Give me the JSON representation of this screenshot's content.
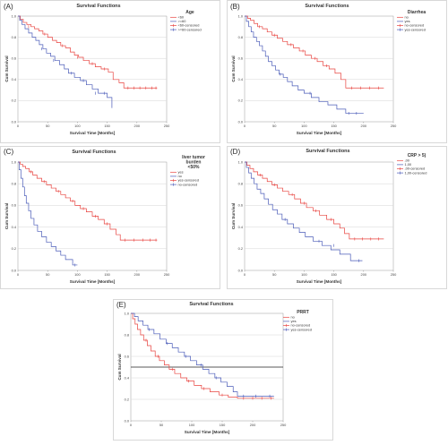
{
  "chart_data": [
    {
      "panel": "(A)",
      "type": "line",
      "title": "Survival Functions",
      "xlabel": "Survival Time [Months]",
      "ylabel": "Cum Survival",
      "xlim": [
        0,
        250
      ],
      "ylim": [
        0,
        1.0
      ],
      "xticks": [
        "0",
        "50",
        "100",
        "150",
        "200",
        "250"
      ],
      "yticks": [
        "0.0",
        "0.2",
        "0.4",
        "0.6",
        "0.8",
        "1.0"
      ],
      "grid": "horizontal",
      "legend": {
        "title": "Age",
        "entries": [
          {
            "label": "<60",
            "color": "#e8433f",
            "style": "line"
          },
          {
            "label": ">=60",
            "color": "#4a5bb8",
            "style": "line"
          },
          {
            "label": "<60-censored",
            "color": "#e8433f",
            "style": "censor"
          },
          {
            "label": ">=60-censored",
            "color": "#4a5bb8",
            "style": "censor"
          }
        ]
      },
      "series": [
        {
          "color": "#e8433f",
          "x": [
            0,
            4,
            9,
            15,
            22,
            28,
            35,
            42,
            50,
            58,
            65,
            72,
            80,
            88,
            95,
            102,
            110,
            120,
            130,
            140,
            152,
            160,
            170,
            178,
            234
          ],
          "y": [
            1.0,
            0.97,
            0.94,
            0.92,
            0.9,
            0.88,
            0.86,
            0.83,
            0.8,
            0.77,
            0.75,
            0.72,
            0.7,
            0.66,
            0.63,
            0.61,
            0.58,
            0.55,
            0.52,
            0.5,
            0.47,
            0.4,
            0.37,
            0.32,
            0.32
          ],
          "censored": [
            [
              18,
              0.9
            ],
            [
              45,
              0.83
            ],
            [
              75,
              0.72
            ],
            [
              100,
              0.61
            ],
            [
              125,
              0.55
            ],
            [
              145,
              0.5
            ],
            [
              185,
              0.32
            ],
            [
              195,
              0.32
            ],
            [
              205,
              0.32
            ],
            [
              215,
              0.32
            ],
            [
              225,
              0.32
            ],
            [
              232,
              0.32
            ]
          ]
        },
        {
          "color": "#4a5bb8",
          "x": [
            0,
            3,
            7,
            12,
            18,
            24,
            30,
            36,
            42,
            48,
            55,
            62,
            70,
            78,
            85,
            95,
            105,
            115,
            125,
            135,
            150,
            158
          ],
          "y": [
            1.0,
            0.96,
            0.92,
            0.88,
            0.84,
            0.8,
            0.77,
            0.73,
            0.69,
            0.65,
            0.62,
            0.58,
            0.54,
            0.5,
            0.46,
            0.42,
            0.39,
            0.35,
            0.31,
            0.27,
            0.23,
            0.13
          ],
          "censored": [
            [
              40,
              0.69
            ],
            [
              60,
              0.58
            ],
            [
              90,
              0.46
            ],
            [
              110,
              0.39
            ],
            [
              130,
              0.27
            ],
            [
              145,
              0.27
            ]
          ]
        }
      ]
    },
    {
      "panel": "(B)",
      "type": "line",
      "title": "Survival Functions",
      "xlabel": "Survival Time [Months]",
      "ylabel": "Cum Survival",
      "xlim": [
        0,
        250
      ],
      "ylim": [
        0,
        1.0
      ],
      "xticks": [
        "0",
        "50",
        "100",
        "150",
        "200",
        "250"
      ],
      "yticks": [
        "0.0",
        "0.2",
        "0.4",
        "0.6",
        "0.8",
        "1.0"
      ],
      "grid": "horizontal",
      "legend": {
        "title": "Diarrhea",
        "entries": [
          {
            "label": "no",
            "color": "#e8433f",
            "style": "line"
          },
          {
            "label": "yes",
            "color": "#4a5bb8",
            "style": "line"
          },
          {
            "label": "no-censored",
            "color": "#e8433f",
            "style": "censor"
          },
          {
            "label": "yes-censored",
            "color": "#4a5bb8",
            "style": "censor"
          }
        ]
      },
      "series": [
        {
          "color": "#e8433f",
          "x": [
            0,
            5,
            10,
            16,
            22,
            30,
            38,
            46,
            55,
            64,
            72,
            82,
            92,
            102,
            112,
            122,
            132,
            142,
            152,
            162,
            170,
            234
          ],
          "y": [
            1.0,
            0.98,
            0.96,
            0.93,
            0.9,
            0.88,
            0.85,
            0.82,
            0.79,
            0.76,
            0.73,
            0.7,
            0.67,
            0.63,
            0.6,
            0.57,
            0.53,
            0.5,
            0.46,
            0.4,
            0.32,
            0.32
          ],
          "censored": [
            [
              25,
              0.9
            ],
            [
              50,
              0.82
            ],
            [
              78,
              0.73
            ],
            [
              98,
              0.67
            ],
            [
              118,
              0.6
            ],
            [
              138,
              0.53
            ],
            [
              180,
              0.32
            ],
            [
              195,
              0.32
            ],
            [
              210,
              0.32
            ],
            [
              225,
              0.32
            ]
          ]
        },
        {
          "color": "#4a5bb8",
          "x": [
            0,
            3,
            7,
            11,
            15,
            20,
            25,
            30,
            35,
            40,
            46,
            52,
            58,
            65,
            72,
            80,
            90,
            100,
            112,
            125,
            140,
            155,
            170,
            200
          ],
          "y": [
            1.0,
            0.95,
            0.9,
            0.85,
            0.8,
            0.76,
            0.72,
            0.67,
            0.62,
            0.57,
            0.53,
            0.49,
            0.45,
            0.42,
            0.38,
            0.34,
            0.3,
            0.27,
            0.23,
            0.19,
            0.16,
            0.12,
            0.08,
            0.08
          ],
          "censored": [
            [
              60,
              0.45
            ],
            [
              110,
              0.27
            ],
            [
              175,
              0.08
            ],
            [
              188,
              0.08
            ]
          ]
        }
      ]
    },
    {
      "panel": "(C)",
      "type": "line",
      "title": "Survival Functions",
      "xlabel": "Survival Time [Months]",
      "ylabel": "Cum Survival",
      "xlim": [
        0,
        250
      ],
      "ylim": [
        0,
        1.0
      ],
      "xticks": [
        "0",
        "50",
        "100",
        "150",
        "200",
        "250"
      ],
      "yticks": [
        "0.0",
        "0.2",
        "0.4",
        "0.6",
        "0.8",
        "1.0"
      ],
      "grid": "horizontal",
      "legend": {
        "title_lines": [
          "liver tumor",
          "burden",
          "<50%"
        ],
        "entries": [
          {
            "label": "yes",
            "color": "#e8433f",
            "style": "line"
          },
          {
            "label": "no",
            "color": "#4a5bb8",
            "style": "line"
          },
          {
            "label": "yes-censored",
            "color": "#e8433f",
            "style": "censor"
          },
          {
            "label": "no-censored",
            "color": "#4a5bb8",
            "style": "censor"
          }
        ]
      },
      "series": [
        {
          "color": "#e8433f",
          "x": [
            0,
            4,
            8,
            13,
            19,
            25,
            32,
            40,
            48,
            56,
            64,
            72,
            80,
            88,
            96,
            105,
            115,
            125,
            135,
            145,
            155,
            165,
            172,
            234
          ],
          "y": [
            1.0,
            0.98,
            0.96,
            0.94,
            0.91,
            0.88,
            0.85,
            0.82,
            0.79,
            0.76,
            0.73,
            0.7,
            0.67,
            0.64,
            0.6,
            0.57,
            0.54,
            0.5,
            0.47,
            0.43,
            0.38,
            0.33,
            0.28,
            0.28
          ],
          "censored": [
            [
              22,
              0.91
            ],
            [
              44,
              0.82
            ],
            [
              68,
              0.73
            ],
            [
              92,
              0.64
            ],
            [
              110,
              0.57
            ],
            [
              130,
              0.5
            ],
            [
              150,
              0.43
            ],
            [
              180,
              0.28
            ],
            [
              195,
              0.28
            ],
            [
              210,
              0.28
            ],
            [
              222,
              0.28
            ],
            [
              232,
              0.28
            ]
          ]
        },
        {
          "color": "#4a5bb8",
          "x": [
            0,
            2,
            5,
            8,
            11,
            14,
            18,
            22,
            27,
            33,
            40,
            48,
            56,
            64,
            72,
            80,
            92,
            100
          ],
          "y": [
            1.0,
            0.93,
            0.85,
            0.77,
            0.69,
            0.62,
            0.55,
            0.48,
            0.42,
            0.36,
            0.31,
            0.26,
            0.22,
            0.18,
            0.14,
            0.1,
            0.05,
            0.05
          ],
          "censored": [
            [
              96,
              0.05
            ]
          ]
        }
      ]
    },
    {
      "panel": "(D)",
      "type": "line",
      "title": "Survival Functions",
      "xlabel": "Survival Time [Months]",
      "ylabel": "Cum Survival",
      "xlim": [
        0,
        250
      ],
      "ylim": [
        0,
        1.0
      ],
      "xticks": [
        "0",
        "50",
        "100",
        "150",
        "200",
        "250"
      ],
      "yticks": [
        "0.0",
        "0.2",
        "0.4",
        "0.6",
        "0.8",
        "1.0"
      ],
      "grid": "horizontal",
      "legend": {
        "title": "CRP > 5)",
        "entries": [
          {
            "label": ",00",
            "color": "#e8433f",
            "style": "line"
          },
          {
            "label": "1,00",
            "color": "#4a5bb8",
            "style": "line"
          },
          {
            "label": ",00-censored",
            "color": "#e8433f",
            "style": "censor"
          },
          {
            "label": "1,00-censored",
            "color": "#4a5bb8",
            "style": "censor"
          }
        ]
      },
      "series": [
        {
          "color": "#e8433f",
          "x": [
            0,
            4,
            9,
            15,
            22,
            30,
            38,
            46,
            55,
            64,
            74,
            84,
            94,
            104,
            115,
            126,
            138,
            150,
            160,
            168,
            176,
            234
          ],
          "y": [
            1.0,
            0.97,
            0.94,
            0.91,
            0.88,
            0.85,
            0.82,
            0.79,
            0.76,
            0.73,
            0.7,
            0.66,
            0.62,
            0.58,
            0.55,
            0.51,
            0.47,
            0.43,
            0.39,
            0.34,
            0.29,
            0.29
          ],
          "censored": [
            [
              26,
              0.88
            ],
            [
              50,
              0.79
            ],
            [
              80,
              0.7
            ],
            [
              100,
              0.62
            ],
            [
              120,
              0.55
            ],
            [
              145,
              0.47
            ],
            [
              185,
              0.29
            ],
            [
              198,
              0.29
            ],
            [
              212,
              0.29
            ],
            [
              225,
              0.29
            ]
          ]
        },
        {
          "color": "#4a5bb8",
          "x": [
            0,
            3,
            7,
            11,
            16,
            21,
            27,
            33,
            40,
            47,
            55,
            63,
            72,
            82,
            92,
            102,
            115,
            130,
            145,
            160,
            178,
            198
          ],
          "y": [
            1.0,
            0.95,
            0.9,
            0.85,
            0.8,
            0.75,
            0.71,
            0.66,
            0.61,
            0.56,
            0.52,
            0.47,
            0.43,
            0.39,
            0.35,
            0.31,
            0.27,
            0.23,
            0.19,
            0.15,
            0.09,
            0.09
          ],
          "censored": [
            [
              68,
              0.47
            ],
            [
              125,
              0.27
            ],
            [
              150,
              0.23
            ],
            [
              192,
              0.09
            ]
          ]
        }
      ]
    },
    {
      "panel": "(E)",
      "type": "line",
      "title": "Survival Functions",
      "xlabel": "Survival Time [Months]",
      "ylabel": "Cum Survival",
      "xlim": [
        0,
        250
      ],
      "ylim": [
        0,
        1.0
      ],
      "xticks": [
        "0",
        "50",
        "100",
        "150",
        "200",
        "250"
      ],
      "yticks": [
        "0.0",
        "0.2",
        "0.4",
        "0.6",
        "0.8",
        "1.0"
      ],
      "grid": "horizontal",
      "reference_line": 0.5,
      "legend": {
        "title": "PRRT",
        "entries": [
          {
            "label": "no",
            "color": "#e8433f",
            "style": "line"
          },
          {
            "label": "yes",
            "color": "#4a5bb8",
            "style": "line"
          },
          {
            "label": "no-censored",
            "color": "#e8433f",
            "style": "censor"
          },
          {
            "label": "yes-censored",
            "color": "#4a5bb8",
            "style": "censor"
          }
        ]
      },
      "series": [
        {
          "color": "#e8433f",
          "x": [
            0,
            3,
            7,
            11,
            16,
            21,
            27,
            33,
            40,
            47,
            55,
            63,
            72,
            82,
            92,
            104,
            116,
            130,
            145,
            160,
            175,
            235
          ],
          "y": [
            1.0,
            0.95,
            0.9,
            0.85,
            0.8,
            0.75,
            0.7,
            0.65,
            0.6,
            0.56,
            0.52,
            0.48,
            0.44,
            0.4,
            0.37,
            0.33,
            0.3,
            0.27,
            0.24,
            0.22,
            0.21,
            0.21
          ],
          "censored": [
            [
              25,
              0.75
            ],
            [
              45,
              0.6
            ],
            [
              68,
              0.48
            ],
            [
              95,
              0.37
            ],
            [
              120,
              0.3
            ],
            [
              150,
              0.24
            ],
            [
              185,
              0.21
            ],
            [
              200,
              0.21
            ],
            [
              215,
              0.21
            ],
            [
              230,
              0.21
            ]
          ]
        },
        {
          "color": "#4a5bb8",
          "x": [
            0,
            6,
            12,
            20,
            28,
            38,
            48,
            58,
            68,
            78,
            88,
            98,
            108,
            118,
            128,
            138,
            148,
            158,
            168,
            175,
            235
          ],
          "y": [
            1.0,
            0.97,
            0.93,
            0.89,
            0.85,
            0.81,
            0.76,
            0.72,
            0.68,
            0.64,
            0.6,
            0.56,
            0.52,
            0.48,
            0.44,
            0.4,
            0.36,
            0.32,
            0.27,
            0.23,
            0.23
          ],
          "censored": [
            [
              30,
              0.85
            ],
            [
              60,
              0.72
            ],
            [
              90,
              0.6
            ],
            [
              115,
              0.52
            ],
            [
              140,
              0.4
            ],
            [
              185,
              0.23
            ],
            [
              205,
              0.23
            ],
            [
              228,
              0.23
            ]
          ]
        }
      ]
    }
  ]
}
